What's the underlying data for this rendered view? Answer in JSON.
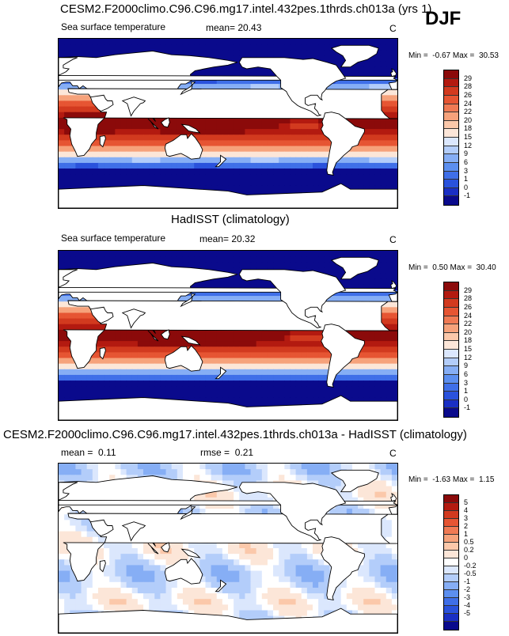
{
  "season": "DJF",
  "colors": {
    "sst": [
      "#0a0a8c",
      "#1a2fc4",
      "#2a52dc",
      "#3f6fe8",
      "#5c8ff0",
      "#86aef5",
      "#b3cdfa",
      "#dbe7fd",
      "#fce6d8",
      "#fbc8aa",
      "#f6a27b",
      "#f07a54",
      "#e65533",
      "#d23a1f",
      "#b31a10",
      "#8b0a0a"
    ],
    "diff": [
      "#0a0a8c",
      "#1a2fc4",
      "#2a52dc",
      "#3f6fe8",
      "#5c8ff0",
      "#86aef5",
      "#b3cdfa",
      "#dbe7fd",
      "#ffffff",
      "#fce6d8",
      "#fbc8aa",
      "#f6a27b",
      "#f07a54",
      "#e65533",
      "#d23a1f",
      "#b31a10",
      "#8b0a0a"
    ]
  },
  "chart_data": [
    {
      "type": "heatmap",
      "title": "CESM2.F2000climo.C96.C96.mg17.intel.432pes.1thrds.ch013a (yrs 1)",
      "variable": "Sea surface temperature",
      "stat_label": "mean=",
      "stat_value": "20.43",
      "units": "C",
      "min_label": "Min =",
      "min_value": "-0.67",
      "max_label": "Max =",
      "max_value": "30.53",
      "levels": [
        "29",
        "28",
        "26",
        "24",
        "22",
        "20",
        "18",
        "15",
        "12",
        "9",
        "6",
        "3",
        "1",
        "0",
        "-1"
      ]
    },
    {
      "type": "heatmap",
      "title": "HadISST (climatology)",
      "variable": "Sea surface temperature",
      "stat_label": "mean=",
      "stat_value": "20.32",
      "units": "C",
      "min_label": "Min =",
      "min_value": "0.50",
      "max_label": "Max =",
      "max_value": "30.40",
      "levels": [
        "29",
        "28",
        "26",
        "24",
        "22",
        "20",
        "18",
        "15",
        "12",
        "9",
        "6",
        "3",
        "1",
        "0",
        "-1"
      ]
    },
    {
      "type": "heatmap",
      "title": "CESM2.F2000climo.C96.C96.mg17.intel.432pes.1thrds.ch013a - HadISST (climatology)",
      "mean_label": "mean =",
      "mean_value": "0.11",
      "rmse_label": "rmse =",
      "rmse_value": "0.21",
      "units": "C",
      "min_label": "Min =",
      "min_value": "-1.63",
      "max_label": "Max =",
      "max_value": "1.15",
      "levels": [
        "5",
        "4",
        "3",
        "2",
        "1",
        "0.5",
        "0.2",
        "0",
        "-0.2",
        "-0.5",
        "-1",
        "-2",
        "-3",
        "-4",
        "-5"
      ]
    }
  ]
}
